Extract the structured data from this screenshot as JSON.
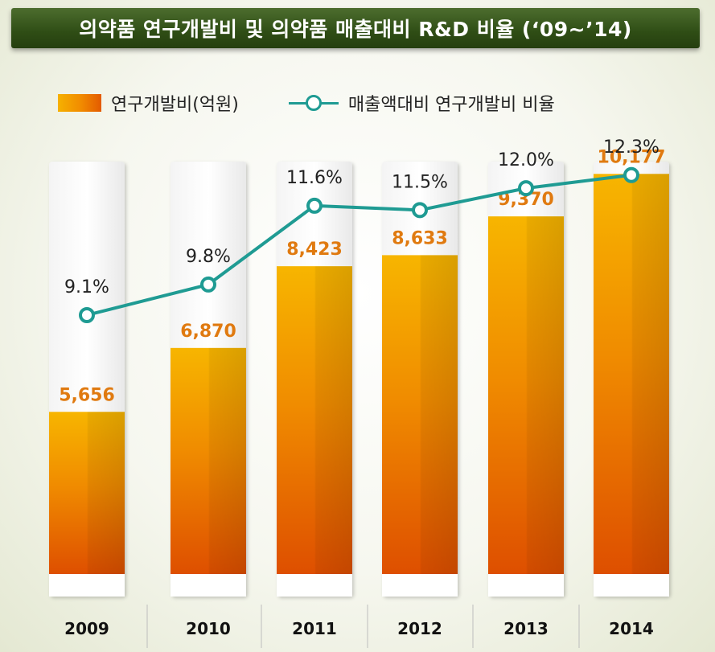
{
  "title": "의약품 연구개발비 및 의약품 매출대비 R&D 비율 (‘09~’14)",
  "legend": {
    "bar": "연구개발비(억원)",
    "line": "매출액대비 연구개발비 비율"
  },
  "colors": {
    "bar_top": "#f6b100",
    "bar_bottom": "#e35a00",
    "line": "#1f9b93",
    "bar_value_text": "#e07a10",
    "title_bg": "#2f4d15"
  },
  "chart_data": {
    "type": "bar",
    "categories": [
      "2009",
      "2010",
      "2011",
      "2012",
      "2013",
      "2014"
    ],
    "series": [
      {
        "name": "연구개발비(억원)",
        "type": "bar",
        "values": [
          5656,
          6870,
          8423,
          8633,
          9370,
          10177
        ],
        "labels": [
          "5,656",
          "6,870",
          "8,423",
          "8,633",
          "9,370",
          "10,177"
        ]
      },
      {
        "name": "매출액대비 연구개발비 비율",
        "type": "line",
        "values": [
          9.1,
          9.8,
          11.6,
          11.5,
          12.0,
          12.3
        ],
        "labels": [
          "9.1%",
          "9.8%",
          "11.6%",
          "11.5%",
          "12.0%",
          "12.3%"
        ]
      }
    ],
    "title": "의약품 연구개발비 및 의약품 매출대비 R&D 비율 (‘09~’14)",
    "xlabel": "",
    "ylabel": "",
    "grid": false,
    "legend_position": "top"
  }
}
